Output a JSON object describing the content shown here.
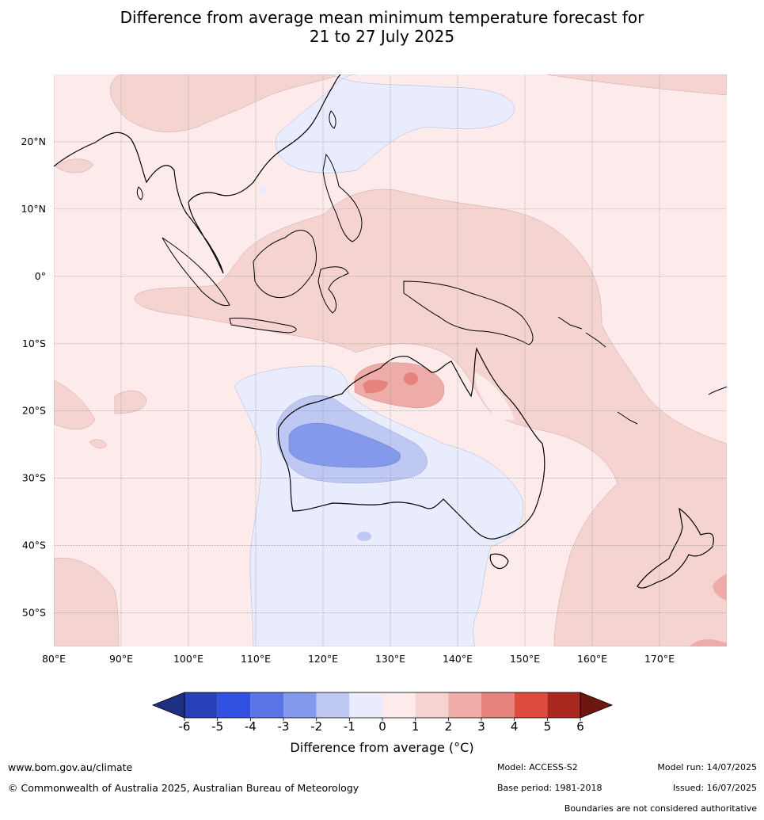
{
  "title": {
    "line1": "Difference from average mean minimum temperature forecast for",
    "line2": "21 to 27 July 2025"
  },
  "map": {
    "lon_ticks": [
      "80°E",
      "90°E",
      "100°E",
      "110°E",
      "120°E",
      "130°E",
      "140°E",
      "150°E",
      "160°E",
      "170°E"
    ],
    "lat_ticks": [
      "20°N",
      "10°N",
      "0°",
      "10°S",
      "20°S",
      "30°S",
      "40°S",
      "50°S"
    ],
    "lon_values": [
      80,
      90,
      100,
      110,
      120,
      130,
      140,
      150,
      160,
      170
    ],
    "lat_values": [
      20,
      10,
      0,
      -10,
      -20,
      -30,
      -40,
      -50
    ],
    "lon_range": [
      80,
      180
    ],
    "lat_range": [
      -55,
      30
    ],
    "grid": true
  },
  "colorbar": {
    "labels": [
      "-6",
      "-5",
      "-4",
      "-3",
      "-2",
      "-1",
      "0",
      "1",
      "2",
      "3",
      "4",
      "5",
      "6"
    ],
    "colors": [
      "#1f2f84",
      "#2640b8",
      "#3150e0",
      "#5a74e6",
      "#8599ec",
      "#bfc8f3",
      "#e8ecfc",
      "#fcebea",
      "#f5d3d1",
      "#edaca8",
      "#e6837d",
      "#dc4b3e",
      "#aa2820",
      "#6e1711"
    ],
    "title": "Difference from average (°C)"
  },
  "footer": {
    "website": "www.bom.gov.au/climate",
    "copyright": "© Commonwealth of Australia 2025, Australian Bureau of Meteorology",
    "model": "Model: ACCESS-S2",
    "base_period": "Base period: 1981-2018",
    "model_run": "Model run: 14/07/2025",
    "issued": "Issued: 16/07/2025",
    "disclaimer": "Boundaries are not considered authoritative"
  }
}
